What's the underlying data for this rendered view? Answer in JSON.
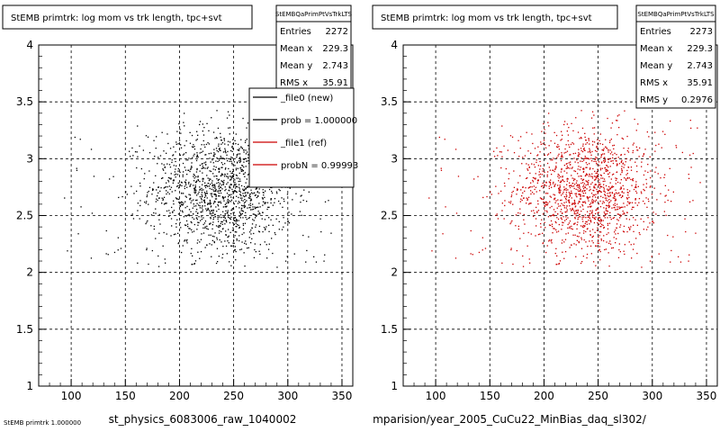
{
  "chart_data": [
    {
      "type": "scatter",
      "title": "StEMB primtrk: log mom vs trk length, tpc+svt",
      "xlabel": "st_physics_6083006_raw_1040002",
      "ylabel": "",
      "xlim": [
        70,
        360
      ],
      "ylim": [
        1,
        4
      ],
      "xticks": [
        "100",
        "150",
        "200",
        "250",
        "300",
        "350"
      ],
      "yticks": [
        "1",
        "1.5",
        "2",
        "2.5",
        "3",
        "3.5",
        "4"
      ],
      "grid": true,
      "point_color": "#000000",
      "stats": {
        "title": "StEMBQaPrimPtVsTrkLTS",
        "rows": [
          {
            "label": "Entries",
            "value": "2272"
          },
          {
            "label": "Mean x",
            "value": "229.3"
          },
          {
            "label": "Mean y",
            "value": "2.743"
          },
          {
            "label": "RMS x",
            "value": "35.91"
          }
        ]
      },
      "legend": {
        "placement": "top-right",
        "entries": [
          {
            "label": "_file0 (new)",
            "color": "#000000"
          },
          {
            "label": "prob = 1.000000",
            "color": "#000000"
          },
          {
            "label": "_file1 (ref)",
            "color": "#cc0000"
          },
          {
            "label": "probN = 0.99993",
            "color": "#cc0000"
          }
        ]
      },
      "footer": "StEMB primtrk 1.000000"
    },
    {
      "type": "scatter",
      "title": "StEMB primtrk: log mom vs trk length, tpc+svt",
      "xlabel": "mparision/year_2005_CuCu22_MinBias_daq_sl302/",
      "ylabel": "",
      "xlim": [
        70,
        360
      ],
      "ylim": [
        1,
        4
      ],
      "xticks": [
        "100",
        "150",
        "200",
        "250",
        "300",
        "350"
      ],
      "yticks": [
        "1",
        "1.5",
        "2",
        "2.5",
        "3",
        "3.5",
        "4"
      ],
      "grid": true,
      "point_color": "#cc0000",
      "stats": {
        "title": "StEMBQaPrimPtVsTrkLTS",
        "rows": [
          {
            "label": "Entries",
            "value": "2273"
          },
          {
            "label": "Mean x",
            "value": "229.3"
          },
          {
            "label": "Mean y",
            "value": "2.743"
          },
          {
            "label": "RMS x",
            "value": "35.91"
          },
          {
            "label": "RMS y",
            "value": "0.2976"
          }
        ]
      }
    }
  ]
}
